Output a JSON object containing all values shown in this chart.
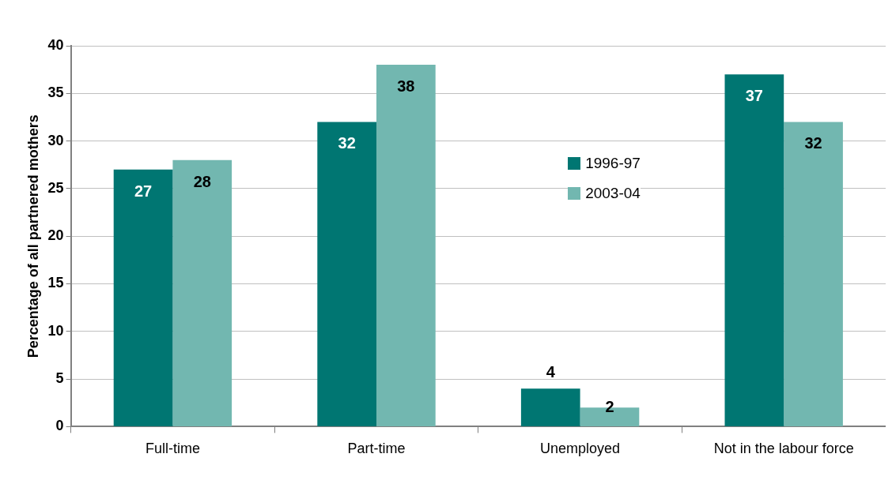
{
  "chart_data": {
    "type": "bar",
    "ylabel": "Percentage of all partnered mothers",
    "categories": [
      "Full-time",
      "Part-time",
      "Unemployed",
      "Not in the labour force"
    ],
    "series": [
      {
        "name": "1996-97",
        "color": "#007672",
        "values": [
          27,
          32,
          4,
          37
        ]
      },
      {
        "name": "2003-04",
        "color": "#72b7b0",
        "values": [
          28,
          38,
          2,
          32
        ]
      }
    ],
    "ylim": [
      0,
      40
    ],
    "yticks": [
      0,
      5,
      10,
      15,
      20,
      25,
      30,
      35,
      40
    ],
    "grid": "y",
    "legend": "center",
    "data_labels": true
  }
}
